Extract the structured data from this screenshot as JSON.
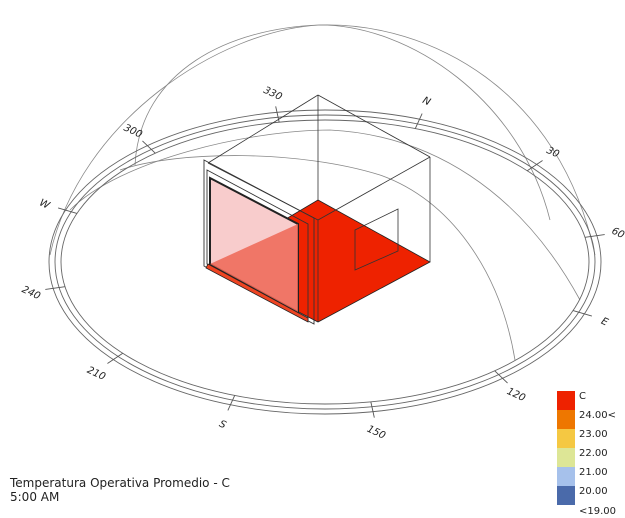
{
  "compass": {
    "labels": [
      {
        "text": "330",
        "angle": 330
      },
      {
        "text": "N",
        "angle": 0
      },
      {
        "text": "30",
        "angle": 30
      },
      {
        "text": "60",
        "angle": 60
      },
      {
        "text": "E",
        "angle": 90
      },
      {
        "text": "120",
        "angle": 120
      },
      {
        "text": "150",
        "angle": 150
      },
      {
        "text": "S",
        "angle": 180
      },
      {
        "text": "210",
        "angle": 210
      },
      {
        "text": "240",
        "angle": 240
      },
      {
        "text": "W",
        "angle": 270
      },
      {
        "text": "300",
        "angle": 300
      }
    ]
  },
  "colors": {
    "floor": "#ee2200",
    "window_pane": "#f8cccc",
    "window_floor": "#ee6655",
    "line": "#333333",
    "dome": "#888888"
  },
  "legend": {
    "unit": "C",
    "items": [
      {
        "label": "24.00<",
        "color": "#ee7700"
      },
      {
        "label": "23.00",
        "color": "#f5c842"
      },
      {
        "label": "22.00",
        "color": "#dde696"
      },
      {
        "label": "21.00",
        "color": "#a6c1eb"
      },
      {
        "label": "20.00",
        "color": "#4a6aaa"
      }
    ],
    "top_color": "#ee2200",
    "bottom_label": "<19.00"
  },
  "caption": {
    "title": "Temperatura Operativa Promedio - C",
    "time": "5:00 AM"
  }
}
